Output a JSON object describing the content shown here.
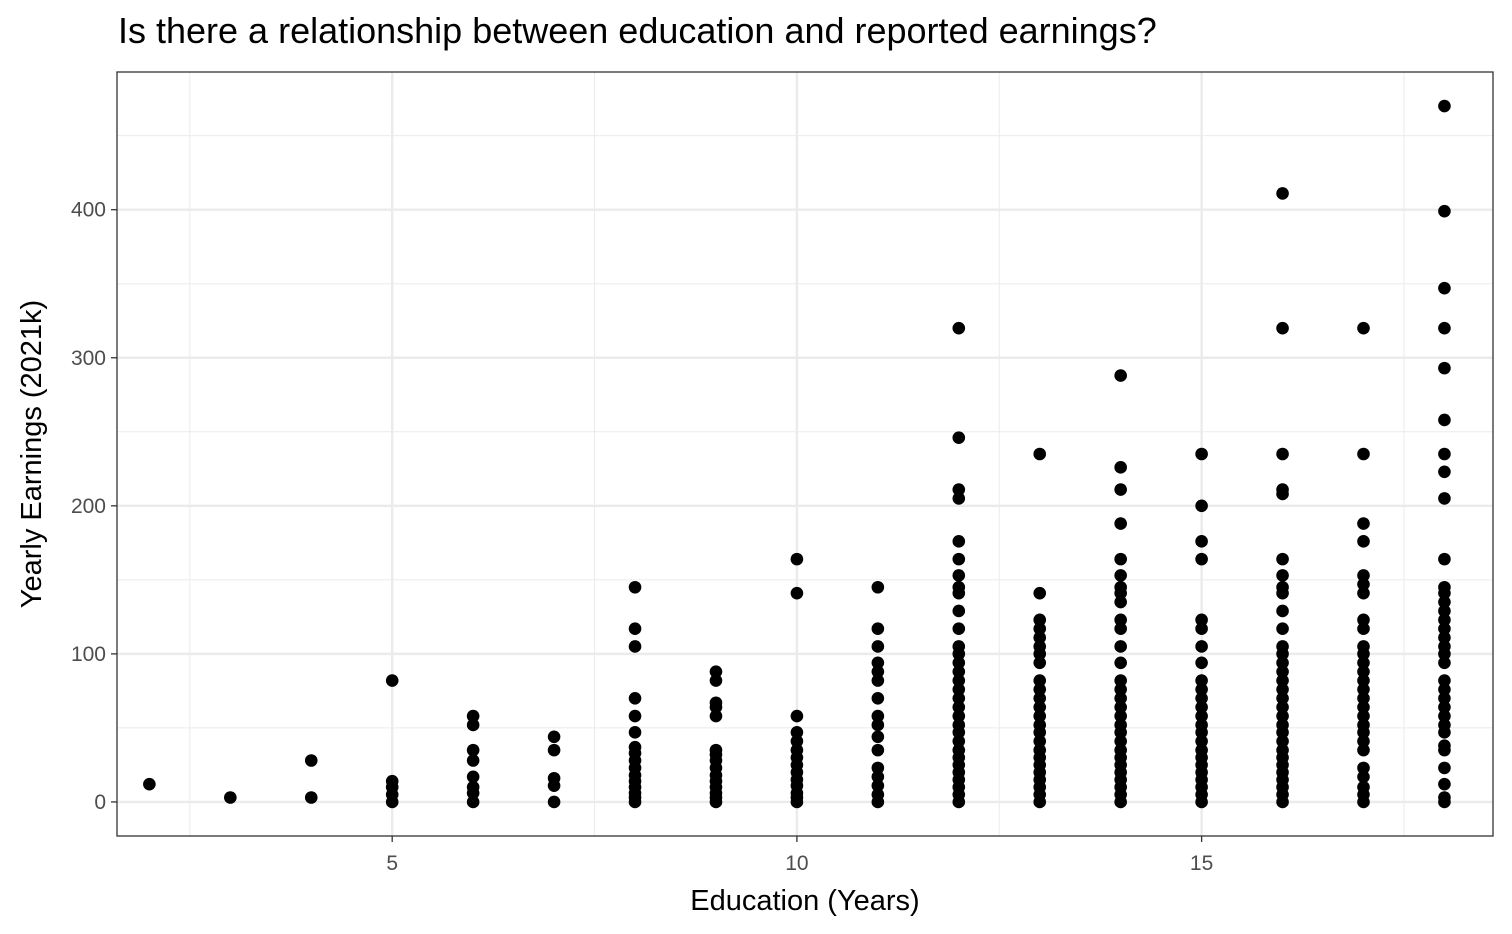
{
  "chart_data": {
    "type": "scatter",
    "title": "Is there a relationship between education and reported earnings?",
    "xlabel": "Education (Years)",
    "ylabel": "Yearly Earnings (2021k)",
    "xlim": [
      1.6,
      18.6
    ],
    "ylim": [
      -23,
      493
    ],
    "x_ticks": [
      5,
      10,
      15
    ],
    "y_ticks": [
      0,
      100,
      200,
      300,
      400
    ],
    "grid": true,
    "legend": "none",
    "point_color": "#000000",
    "series": [
      {
        "points": [
          [
            2,
            12
          ],
          [
            3,
            3
          ],
          [
            4,
            28
          ],
          [
            4,
            3
          ],
          [
            5,
            82
          ],
          [
            5,
            14
          ],
          [
            5,
            10
          ],
          [
            5,
            5
          ],
          [
            5,
            0
          ],
          [
            6,
            58
          ],
          [
            6,
            52
          ],
          [
            6,
            35
          ],
          [
            6,
            28
          ],
          [
            6,
            17
          ],
          [
            6,
            10
          ],
          [
            6,
            6
          ],
          [
            6,
            0
          ],
          [
            7,
            44
          ],
          [
            7,
            35
          ],
          [
            7,
            16
          ],
          [
            7,
            11
          ],
          [
            7,
            0
          ],
          [
            8,
            145
          ],
          [
            8,
            117
          ],
          [
            8,
            105
          ],
          [
            8,
            70
          ],
          [
            8,
            58
          ],
          [
            8,
            47
          ],
          [
            8,
            37
          ],
          [
            8,
            33
          ],
          [
            8,
            28
          ],
          [
            8,
            23
          ],
          [
            8,
            18
          ],
          [
            8,
            14
          ],
          [
            8,
            10
          ],
          [
            8,
            6
          ],
          [
            8,
            3
          ],
          [
            8,
            0
          ],
          [
            9,
            88
          ],
          [
            9,
            82
          ],
          [
            9,
            67
          ],
          [
            9,
            64
          ],
          [
            9,
            58
          ],
          [
            9,
            35
          ],
          [
            9,
            32
          ],
          [
            9,
            28
          ],
          [
            9,
            23
          ],
          [
            9,
            18
          ],
          [
            9,
            14
          ],
          [
            9,
            10
          ],
          [
            9,
            6
          ],
          [
            9,
            3
          ],
          [
            9,
            0
          ],
          [
            10,
            164
          ],
          [
            10,
            141
          ],
          [
            10,
            58
          ],
          [
            10,
            47
          ],
          [
            10,
            41
          ],
          [
            10,
            35
          ],
          [
            10,
            30
          ],
          [
            10,
            25
          ],
          [
            10,
            20
          ],
          [
            10,
            15
          ],
          [
            10,
            11
          ],
          [
            10,
            6
          ],
          [
            10,
            3
          ],
          [
            10,
            0
          ],
          [
            11,
            145
          ],
          [
            11,
            117
          ],
          [
            11,
            105
          ],
          [
            11,
            94
          ],
          [
            11,
            88
          ],
          [
            11,
            82
          ],
          [
            11,
            70
          ],
          [
            11,
            58
          ],
          [
            11,
            52
          ],
          [
            11,
            44
          ],
          [
            11,
            35
          ],
          [
            11,
            23
          ],
          [
            11,
            17
          ],
          [
            11,
            11
          ],
          [
            11,
            5
          ],
          [
            11,
            0
          ],
          [
            12,
            320
          ],
          [
            12,
            246
          ],
          [
            12,
            211
          ],
          [
            12,
            205
          ],
          [
            12,
            176
          ],
          [
            12,
            164
          ],
          [
            12,
            153
          ],
          [
            12,
            145
          ],
          [
            12,
            141
          ],
          [
            12,
            129
          ],
          [
            12,
            117
          ],
          [
            12,
            105
          ],
          [
            12,
            100
          ],
          [
            12,
            94
          ],
          [
            12,
            88
          ],
          [
            12,
            82
          ],
          [
            12,
            76
          ],
          [
            12,
            70
          ],
          [
            12,
            64
          ],
          [
            12,
            58
          ],
          [
            12,
            52
          ],
          [
            12,
            47
          ],
          [
            12,
            41
          ],
          [
            12,
            35
          ],
          [
            12,
            30
          ],
          [
            12,
            25
          ],
          [
            12,
            20
          ],
          [
            12,
            15
          ],
          [
            12,
            10
          ],
          [
            12,
            5
          ],
          [
            12,
            0
          ],
          [
            13,
            235
          ],
          [
            13,
            141
          ],
          [
            13,
            123
          ],
          [
            13,
            117
          ],
          [
            13,
            111
          ],
          [
            13,
            105
          ],
          [
            13,
            100
          ],
          [
            13,
            94
          ],
          [
            13,
            82
          ],
          [
            13,
            76
          ],
          [
            13,
            70
          ],
          [
            13,
            64
          ],
          [
            13,
            58
          ],
          [
            13,
            52
          ],
          [
            13,
            47
          ],
          [
            13,
            41
          ],
          [
            13,
            35
          ],
          [
            13,
            30
          ],
          [
            13,
            25
          ],
          [
            13,
            20
          ],
          [
            13,
            15
          ],
          [
            13,
            10
          ],
          [
            13,
            5
          ],
          [
            13,
            0
          ],
          [
            14,
            288
          ],
          [
            14,
            226
          ],
          [
            14,
            211
          ],
          [
            14,
            188
          ],
          [
            14,
            164
          ],
          [
            14,
            153
          ],
          [
            14,
            145
          ],
          [
            14,
            141
          ],
          [
            14,
            135
          ],
          [
            14,
            123
          ],
          [
            14,
            117
          ],
          [
            14,
            105
          ],
          [
            14,
            94
          ],
          [
            14,
            82
          ],
          [
            14,
            76
          ],
          [
            14,
            70
          ],
          [
            14,
            64
          ],
          [
            14,
            58
          ],
          [
            14,
            52
          ],
          [
            14,
            47
          ],
          [
            14,
            41
          ],
          [
            14,
            35
          ],
          [
            14,
            30
          ],
          [
            14,
            25
          ],
          [
            14,
            20
          ],
          [
            14,
            15
          ],
          [
            14,
            10
          ],
          [
            14,
            5
          ],
          [
            14,
            0
          ],
          [
            15,
            235
          ],
          [
            15,
            200
          ],
          [
            15,
            176
          ],
          [
            15,
            164
          ],
          [
            15,
            123
          ],
          [
            15,
            117
          ],
          [
            15,
            105
          ],
          [
            15,
            94
          ],
          [
            15,
            82
          ],
          [
            15,
            76
          ],
          [
            15,
            70
          ],
          [
            15,
            64
          ],
          [
            15,
            58
          ],
          [
            15,
            52
          ],
          [
            15,
            47
          ],
          [
            15,
            41
          ],
          [
            15,
            35
          ],
          [
            15,
            30
          ],
          [
            15,
            25
          ],
          [
            15,
            20
          ],
          [
            15,
            15
          ],
          [
            15,
            10
          ],
          [
            15,
            5
          ],
          [
            15,
            0
          ],
          [
            16,
            411
          ],
          [
            16,
            320
          ],
          [
            16,
            235
          ],
          [
            16,
            211
          ],
          [
            16,
            208
          ],
          [
            16,
            164
          ],
          [
            16,
            153
          ],
          [
            16,
            145
          ],
          [
            16,
            141
          ],
          [
            16,
            129
          ],
          [
            16,
            117
          ],
          [
            16,
            105
          ],
          [
            16,
            100
          ],
          [
            16,
            94
          ],
          [
            16,
            88
          ],
          [
            16,
            82
          ],
          [
            16,
            76
          ],
          [
            16,
            70
          ],
          [
            16,
            64
          ],
          [
            16,
            58
          ],
          [
            16,
            52
          ],
          [
            16,
            47
          ],
          [
            16,
            41
          ],
          [
            16,
            35
          ],
          [
            16,
            30
          ],
          [
            16,
            25
          ],
          [
            16,
            20
          ],
          [
            16,
            15
          ],
          [
            16,
            10
          ],
          [
            16,
            5
          ],
          [
            16,
            0
          ],
          [
            17,
            320
          ],
          [
            17,
            235
          ],
          [
            17,
            188
          ],
          [
            17,
            176
          ],
          [
            17,
            153
          ],
          [
            17,
            147
          ],
          [
            17,
            141
          ],
          [
            17,
            123
          ],
          [
            17,
            117
          ],
          [
            17,
            105
          ],
          [
            17,
            100
          ],
          [
            17,
            94
          ],
          [
            17,
            88
          ],
          [
            17,
            82
          ],
          [
            17,
            76
          ],
          [
            17,
            70
          ],
          [
            17,
            64
          ],
          [
            17,
            58
          ],
          [
            17,
            52
          ],
          [
            17,
            47
          ],
          [
            17,
            41
          ],
          [
            17,
            35
          ],
          [
            17,
            23
          ],
          [
            17,
            17
          ],
          [
            17,
            10
          ],
          [
            17,
            5
          ],
          [
            17,
            0
          ],
          [
            18,
            470
          ],
          [
            18,
            399
          ],
          [
            18,
            347
          ],
          [
            18,
            320
          ],
          [
            18,
            293
          ],
          [
            18,
            258
          ],
          [
            18,
            235
          ],
          [
            18,
            223
          ],
          [
            18,
            205
          ],
          [
            18,
            164
          ],
          [
            18,
            145
          ],
          [
            18,
            141
          ],
          [
            18,
            135
          ],
          [
            18,
            129
          ],
          [
            18,
            123
          ],
          [
            18,
            117
          ],
          [
            18,
            111
          ],
          [
            18,
            105
          ],
          [
            18,
            100
          ],
          [
            18,
            94
          ],
          [
            18,
            82
          ],
          [
            18,
            76
          ],
          [
            18,
            70
          ],
          [
            18,
            64
          ],
          [
            18,
            58
          ],
          [
            18,
            52
          ],
          [
            18,
            47
          ],
          [
            18,
            38
          ],
          [
            18,
            35
          ],
          [
            18,
            23
          ],
          [
            18,
            12
          ],
          [
            18,
            3
          ],
          [
            18,
            0
          ]
        ]
      }
    ]
  }
}
